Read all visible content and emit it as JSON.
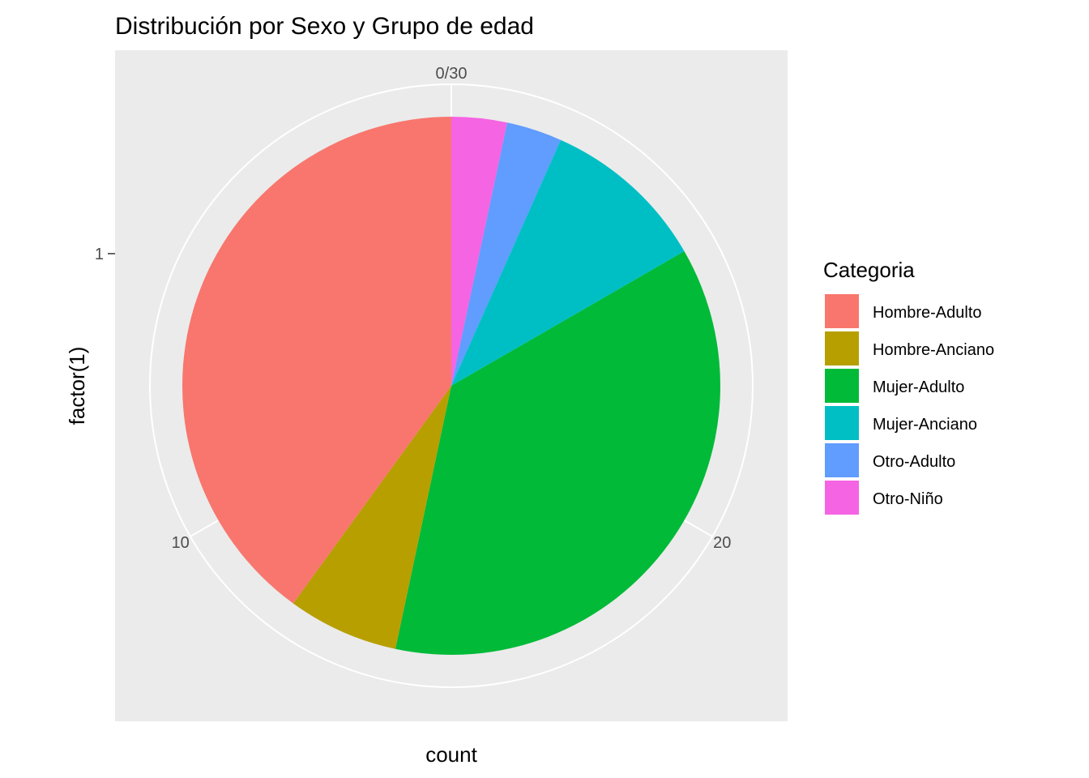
{
  "chart_data": {
    "type": "pie",
    "title": "Distribución por Sexo y Grupo de edad",
    "xlabel": "count",
    "ylabel": "factor(1)",
    "y_tick": "1",
    "theta_ticks": [
      {
        "label": "0/30",
        "value": 0
      },
      {
        "label": "10",
        "value": 10
      },
      {
        "label": "20",
        "value": 20
      }
    ],
    "total": 30,
    "direction": "counterclockwise",
    "legend_title": "Categoria",
    "legend_position": "right",
    "background": "#EBEBEB",
    "grid_color": "#FFFFFF",
    "slices": [
      {
        "label": "Hombre-Adulto",
        "value": 12,
        "color": "#F8766D"
      },
      {
        "label": "Hombre-Anciano",
        "value": 2,
        "color": "#B79F00"
      },
      {
        "label": "Mujer-Adulto",
        "value": 11,
        "color": "#00BA38"
      },
      {
        "label": "Mujer-Anciano",
        "value": 3,
        "color": "#00BFC4"
      },
      {
        "label": "Otro-Adulto",
        "value": 1,
        "color": "#619CFF"
      },
      {
        "label": "Otro-Niño",
        "value": 1,
        "color": "#F564E3"
      }
    ]
  }
}
